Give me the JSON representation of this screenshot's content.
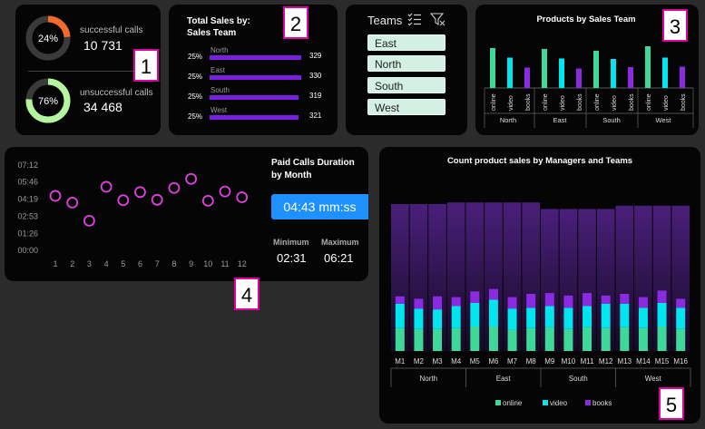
{
  "kpi": {
    "successful": {
      "pct_label": "24%",
      "fraction": 0.24,
      "label": "successful calls",
      "value": "10 731",
      "color": "#f26b2a"
    },
    "unsuccessful": {
      "pct_label": "76%",
      "fraction": 0.76,
      "label": "unsuccessful calls",
      "value": "34 468",
      "color": "#b4f5a0"
    }
  },
  "sales_by_team": {
    "title_line1": "Total Sales by:",
    "title_line2": "Sales Team",
    "bar_color": "#7a1fe0",
    "teams": [
      {
        "name": "North",
        "pct": "25%",
        "value": "329",
        "amount": 329
      },
      {
        "name": "East",
        "pct": "25%",
        "value": "330",
        "amount": 330
      },
      {
        "name": "South",
        "pct": "25%",
        "value": "319",
        "amount": 319
      },
      {
        "name": "West",
        "pct": "25%",
        "value": "321",
        "amount": 321
      }
    ]
  },
  "teams_slicer": {
    "title": "Teams",
    "items": [
      "East",
      "North",
      "South",
      "West"
    ]
  },
  "markers": [
    "1",
    "2",
    "3",
    "4",
    "5"
  ],
  "paid_calls": {
    "title_line1": "Paid Calls Duration",
    "title_line2": "by Month",
    "average": "04:43 mm:ss",
    "min_label": "Minimum",
    "min_value": "02:31",
    "max_label": "Maximum",
    "max_value": "06:21"
  },
  "colors": {
    "online": "#3ed99a",
    "video": "#00e5ee",
    "books": "#8a2be2",
    "marker_circle": "#e040e0",
    "accent_blue": "#1e90ff"
  },
  "chart_data": [
    {
      "type": "bar",
      "title": "Products by Sales Team",
      "groups": [
        "North",
        "East",
        "South",
        "West"
      ],
      "categories": [
        "online",
        "video",
        "books"
      ],
      "series": [
        {
          "name": "North",
          "values": [
            88,
            67,
            45
          ]
        },
        {
          "name": "East",
          "values": [
            86,
            65,
            43
          ]
        },
        {
          "name": "South",
          "values": [
            82,
            64,
            46
          ]
        },
        {
          "name": "West",
          "values": [
            92,
            67,
            47
          ]
        }
      ],
      "ylim": [
        0,
        100
      ]
    },
    {
      "type": "scatter",
      "title": "Paid Calls Duration by Month",
      "x": [
        1,
        2,
        3,
        4,
        5,
        6,
        7,
        8,
        9,
        10,
        11,
        12
      ],
      "y": [
        "04:36",
        "04:02",
        "02:30",
        "05:22",
        "04:14",
        "04:55",
        "04:16",
        "05:16",
        "06:02",
        "04:11",
        "04:58",
        "04:29"
      ],
      "yticks": [
        "00:00",
        "01:26",
        "02:53",
        "04:19",
        "05:46",
        "07:12"
      ],
      "xticks": [
        "1",
        "2",
        "3",
        "4",
        "5",
        "6",
        "7",
        "8",
        "9",
        "10",
        "11",
        "12"
      ],
      "ylim_seconds": [
        0,
        432
      ]
    },
    {
      "type": "bar",
      "title": "Count product sales by Managers and Teams",
      "categories": [
        "M1",
        "M2",
        "M3",
        "M4",
        "M5",
        "M6",
        "M7",
        "M8",
        "M9",
        "M10",
        "M11",
        "M12",
        "M13",
        "M14",
        "M15",
        "M16"
      ],
      "groups": [
        {
          "name": "North",
          "managers": 4
        },
        {
          "name": "East",
          "managers": 4
        },
        {
          "name": "South",
          "managers": 4
        },
        {
          "name": "West",
          "managers": 4
        }
      ],
      "series": [
        {
          "name": "online",
          "values": [
            28,
            27,
            27,
            28,
            30,
            30,
            26,
            28,
            29,
            27,
            29,
            28,
            29,
            28,
            30,
            27
          ]
        },
        {
          "name": "video",
          "values": [
            30,
            25,
            24,
            27,
            29,
            33,
            26,
            25,
            26,
            26,
            26,
            30,
            29,
            25,
            29,
            26
          ]
        },
        {
          "name": "books",
          "values": [
            9,
            12,
            16,
            11,
            14,
            13,
            14,
            17,
            16,
            15,
            16,
            10,
            12,
            13,
            15,
            11
          ]
        },
        {
          "name": "capacity",
          "values": [
            180,
            180,
            180,
            182,
            182,
            182,
            182,
            182,
            174,
            174,
            174,
            174,
            178,
            178,
            178,
            178
          ]
        }
      ],
      "legend": [
        "online",
        "video",
        "books"
      ],
      "legend_position": "bottom",
      "ylim": [
        0,
        190
      ]
    }
  ]
}
